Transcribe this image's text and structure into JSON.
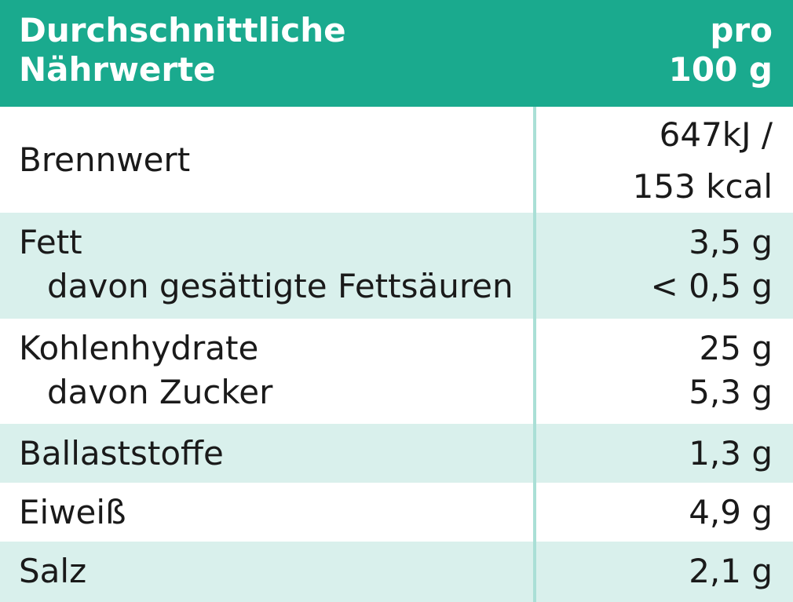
{
  "header": {
    "left_line1": "Durchschnittliche",
    "left_line2": "Nährwerte",
    "right_line1": "pro",
    "right_line2": "100 g"
  },
  "rows": [
    {
      "label": "Brennwert",
      "value_line1": "647kJ /",
      "value_line2": "153 kcal"
    },
    {
      "label": "Fett",
      "sublabel": "davon gesättigte Fettsäuren",
      "value": "3,5 g",
      "subvalue": "< 0,5 g"
    },
    {
      "label": "Kohlenhydrate",
      "sublabel": "davon Zucker",
      "value": "25 g",
      "subvalue": "5,3 g"
    },
    {
      "label": "Ballaststoffe",
      "value": "1,3 g"
    },
    {
      "label": "Eiweiß",
      "value": "4,9 g"
    },
    {
      "label": "Salz",
      "value": "2,1 g"
    }
  ],
  "colors": {
    "header_bg": "#1aaa8e",
    "row_tint": "#d9f0ec",
    "divider": "#aadfd6"
  }
}
